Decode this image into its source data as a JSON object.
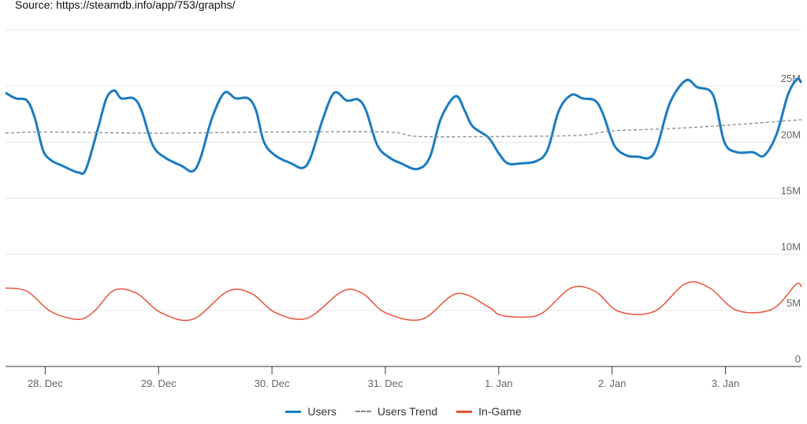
{
  "source": "Source: https://steamdb.info/app/753/graphs/",
  "chart_data": {
    "type": "line",
    "title": "",
    "xlabel": "",
    "ylabel": "",
    "x_unit": "days since 28 Dec",
    "xlim": [
      -0.35,
      6.67
    ],
    "ylim": [
      0,
      30
    ],
    "grid": true,
    "legend_placement": "bottom-center",
    "x_ticks": [
      {
        "v": 0,
        "label": "28. Dec"
      },
      {
        "v": 1,
        "label": "29. Dec"
      },
      {
        "v": 2,
        "label": "30. Dec"
      },
      {
        "v": 3,
        "label": "31. Dec"
      },
      {
        "v": 4,
        "label": "1. Jan"
      },
      {
        "v": 5,
        "label": "2. Jan"
      },
      {
        "v": 6,
        "label": "3. Jan"
      }
    ],
    "y_ticks": [
      {
        "v": 0,
        "label": "0"
      },
      {
        "v": 5,
        "label": "5M"
      },
      {
        "v": 10,
        "label": "10M"
      },
      {
        "v": 15,
        "label": "15M"
      },
      {
        "v": 20,
        "label": "20M"
      },
      {
        "v": 25,
        "label": "25M"
      },
      {
        "v": 30,
        "label": ""
      }
    ],
    "series": [
      {
        "name": "Users",
        "color": "#1a7cc1",
        "dash": false,
        "points": [
          [
            -0.35,
            24.4
          ],
          [
            -0.26,
            23.9
          ],
          [
            -0.16,
            23.7
          ],
          [
            -0.09,
            22.1
          ],
          [
            -0.02,
            19.3
          ],
          [
            0.05,
            18.4
          ],
          [
            0.15,
            17.9
          ],
          [
            0.29,
            17.3
          ],
          [
            0.36,
            17.6
          ],
          [
            0.47,
            21.4
          ],
          [
            0.54,
            23.9
          ],
          [
            0.61,
            24.6
          ],
          [
            0.67,
            23.9
          ],
          [
            0.78,
            23.9
          ],
          [
            0.85,
            22.8
          ],
          [
            0.95,
            19.7
          ],
          [
            1.06,
            18.6
          ],
          [
            1.2,
            17.9
          ],
          [
            1.3,
            17.4
          ],
          [
            1.37,
            18.6
          ],
          [
            1.47,
            22.1
          ],
          [
            1.58,
            24.4
          ],
          [
            1.68,
            23.9
          ],
          [
            1.79,
            23.9
          ],
          [
            1.86,
            22.8
          ],
          [
            1.93,
            20.0
          ],
          [
            2.03,
            18.8
          ],
          [
            2.17,
            18.1
          ],
          [
            2.27,
            17.7
          ],
          [
            2.34,
            18.6
          ],
          [
            2.45,
            22.1
          ],
          [
            2.55,
            24.4
          ],
          [
            2.66,
            23.7
          ],
          [
            2.76,
            23.8
          ],
          [
            2.83,
            22.8
          ],
          [
            2.93,
            19.7
          ],
          [
            3.04,
            18.6
          ],
          [
            3.14,
            18.1
          ],
          [
            3.28,
            17.6
          ],
          [
            3.39,
            18.6
          ],
          [
            3.49,
            22.1
          ],
          [
            3.62,
            24.1
          ],
          [
            3.7,
            22.8
          ],
          [
            3.77,
            21.4
          ],
          [
            3.91,
            20.4
          ],
          [
            4.0,
            19.0
          ],
          [
            4.08,
            18.1
          ],
          [
            4.19,
            18.1
          ],
          [
            4.33,
            18.3
          ],
          [
            4.43,
            19.3
          ],
          [
            4.53,
            22.8
          ],
          [
            4.64,
            24.2
          ],
          [
            4.74,
            23.9
          ],
          [
            4.85,
            23.7
          ],
          [
            4.92,
            22.5
          ],
          [
            5.02,
            19.7
          ],
          [
            5.13,
            18.8
          ],
          [
            5.23,
            18.7
          ],
          [
            5.33,
            18.6
          ],
          [
            5.4,
            19.7
          ],
          [
            5.51,
            23.5
          ],
          [
            5.65,
            25.5
          ],
          [
            5.75,
            24.9
          ],
          [
            5.89,
            24.2
          ],
          [
            5.99,
            20.0
          ],
          [
            6.1,
            19.1
          ],
          [
            6.24,
            19.1
          ],
          [
            6.34,
            18.8
          ],
          [
            6.45,
            20.7
          ],
          [
            6.55,
            24.2
          ],
          [
            6.63,
            25.6
          ],
          [
            6.67,
            25.3
          ]
        ]
      },
      {
        "name": "Users Trend",
        "color": "#888888",
        "dash": true,
        "points": [
          [
            -0.35,
            20.8
          ],
          [
            0,
            20.9
          ],
          [
            1,
            20.8
          ],
          [
            2,
            20.9
          ],
          [
            3,
            20.9
          ],
          [
            3.3,
            20.5
          ],
          [
            4,
            20.5
          ],
          [
            4.7,
            20.6
          ],
          [
            5,
            21.0
          ],
          [
            5.5,
            21.2
          ],
          [
            6,
            21.5
          ],
          [
            6.67,
            22.0
          ]
        ]
      },
      {
        "name": "In-Game",
        "color": "#e8533a",
        "dash": false,
        "points": [
          [
            -0.35,
            7.0
          ],
          [
            -0.16,
            6.7
          ],
          [
            0.05,
            4.9
          ],
          [
            0.29,
            4.2
          ],
          [
            0.43,
            4.9
          ],
          [
            0.61,
            6.8
          ],
          [
            0.81,
            6.5
          ],
          [
            1.02,
            4.8
          ],
          [
            1.3,
            4.2
          ],
          [
            1.61,
            6.7
          ],
          [
            1.82,
            6.5
          ],
          [
            2.03,
            4.8
          ],
          [
            2.31,
            4.3
          ],
          [
            2.62,
            6.7
          ],
          [
            2.8,
            6.5
          ],
          [
            3.0,
            4.8
          ],
          [
            3.32,
            4.2
          ],
          [
            3.63,
            6.5
          ],
          [
            3.91,
            5.3
          ],
          [
            4.01,
            4.6
          ],
          [
            4.22,
            4.4
          ],
          [
            4.39,
            4.8
          ],
          [
            4.64,
            7.0
          ],
          [
            4.85,
            6.7
          ],
          [
            5.06,
            4.9
          ],
          [
            5.37,
            4.9
          ],
          [
            5.65,
            7.4
          ],
          [
            5.86,
            7.0
          ],
          [
            6.1,
            5.0
          ],
          [
            6.41,
            5.1
          ],
          [
            6.62,
            7.3
          ],
          [
            6.67,
            7.1
          ]
        ]
      }
    ]
  }
}
